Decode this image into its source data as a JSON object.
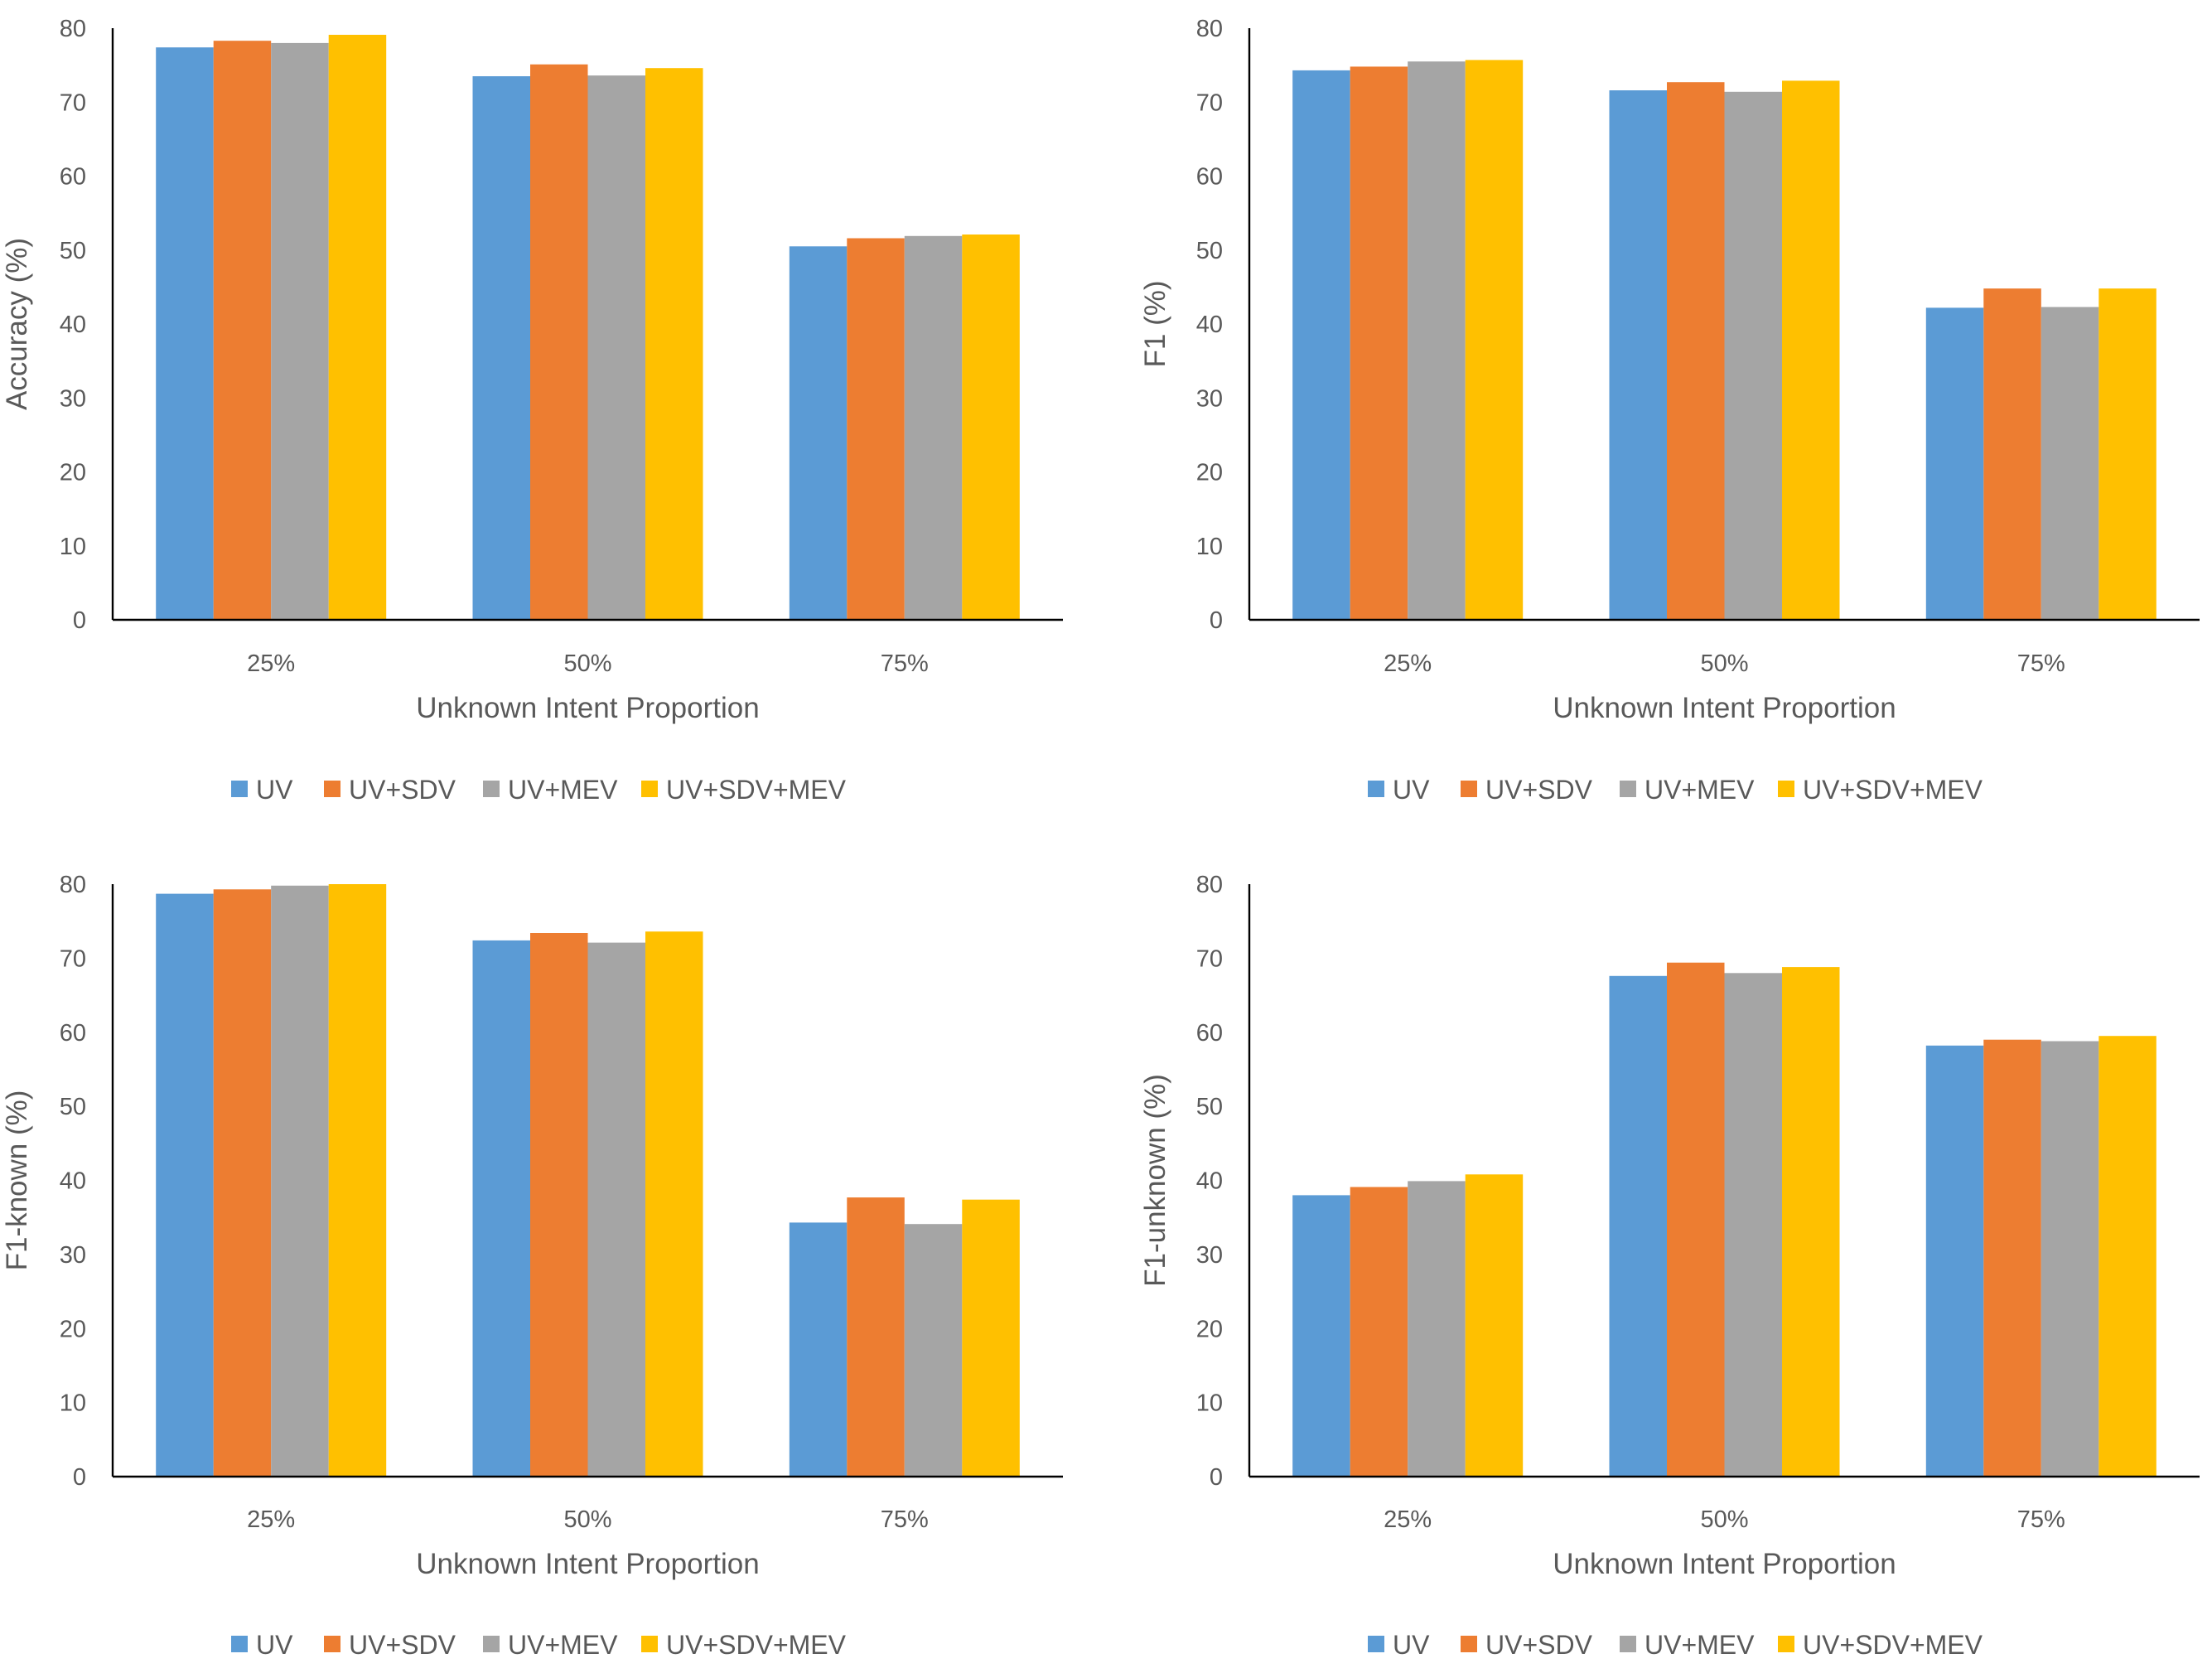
{
  "colors": {
    "UV": "#5b9bd5",
    "UV+SDV": "#ed7d31",
    "UV+MEV": "#a5a5a5",
    "UV+SDV+MEV": "#ffc000"
  },
  "chart_data": [
    {
      "type": "bar",
      "categories": [
        "25%",
        "50%",
        "75%"
      ],
      "series": [
        {
          "name": "UV",
          "values": [
            77.4,
            73.5,
            50.5
          ]
        },
        {
          "name": "UV+SDV",
          "values": [
            78.3,
            75.1,
            51.6
          ]
        },
        {
          "name": "UV+MEV",
          "values": [
            78.0,
            73.6,
            51.9
          ]
        },
        {
          "name": "UV+SDV+MEV",
          "values": [
            79.1,
            74.6,
            52.1
          ]
        }
      ],
      "xlabel": "Unknown Intent Proportion",
      "ylabel": "Accuracy (%)",
      "ylim": [
        0,
        80
      ],
      "yticks": [
        "0",
        "10",
        "20",
        "30",
        "40",
        "50",
        "60",
        "70",
        "80"
      ],
      "legend": [
        "UV",
        "UV+SDV",
        "UV+MEV",
        "UV+SDV+MEV"
      ],
      "legend_position": "bottom"
    },
    {
      "type": "bar",
      "categories": [
        "25%",
        "50%",
        "75%"
      ],
      "series": [
        {
          "name": "UV",
          "values": [
            74.3,
            71.6,
            42.2
          ]
        },
        {
          "name": "UV+SDV",
          "values": [
            74.8,
            72.7,
            44.8
          ]
        },
        {
          "name": "UV+MEV",
          "values": [
            75.5,
            71.4,
            42.3
          ]
        },
        {
          "name": "UV+SDV+MEV",
          "values": [
            75.7,
            72.9,
            44.8
          ]
        }
      ],
      "xlabel": "Unknown Intent Proportion",
      "ylabel": "F1 (%)",
      "ylim": [
        0,
        80
      ],
      "yticks": [
        "0",
        "10",
        "20",
        "30",
        "40",
        "50",
        "60",
        "70",
        "80"
      ],
      "legend": [
        "UV",
        "UV+SDV",
        "UV+MEV",
        "UV+SDV+MEV"
      ],
      "legend_position": "bottom"
    },
    {
      "type": "bar",
      "categories": [
        "25%",
        "50%",
        "75%"
      ],
      "series": [
        {
          "name": "UV",
          "values": [
            78.7,
            72.4,
            34.3
          ]
        },
        {
          "name": "UV+SDV",
          "values": [
            79.3,
            73.4,
            37.7
          ]
        },
        {
          "name": "UV+MEV",
          "values": [
            79.8,
            72.1,
            34.1
          ]
        },
        {
          "name": "UV+SDV+MEV",
          "values": [
            80.0,
            73.6,
            37.4
          ]
        }
      ],
      "xlabel": "Unknown Intent Proportion",
      "ylabel": "F1-known (%)",
      "ylim": [
        0,
        80
      ],
      "yticks": [
        "0",
        "10",
        "20",
        "30",
        "40",
        "50",
        "60",
        "70",
        "80"
      ],
      "legend": [
        "UV",
        "UV+SDV",
        "UV+MEV",
        "UV+SDV+MEV"
      ],
      "legend_position": "bottom"
    },
    {
      "type": "bar",
      "categories": [
        "25%",
        "50%",
        "75%"
      ],
      "series": [
        {
          "name": "UV",
          "values": [
            38.0,
            67.6,
            58.2
          ]
        },
        {
          "name": "UV+SDV",
          "values": [
            39.1,
            69.4,
            59.0
          ]
        },
        {
          "name": "UV+MEV",
          "values": [
            39.9,
            68.0,
            58.8
          ]
        },
        {
          "name": "UV+SDV+MEV",
          "values": [
            40.8,
            68.8,
            59.5
          ]
        }
      ],
      "xlabel": "Unknown Intent Proportion",
      "ylabel": "F1-unknown (%)",
      "ylim": [
        0,
        80
      ],
      "yticks": [
        "0",
        "10",
        "20",
        "30",
        "40",
        "50",
        "60",
        "70",
        "80"
      ],
      "legend": [
        "UV",
        "UV+SDV",
        "UV+MEV",
        "UV+SDV+MEV"
      ],
      "legend_position": "bottom"
    }
  ]
}
